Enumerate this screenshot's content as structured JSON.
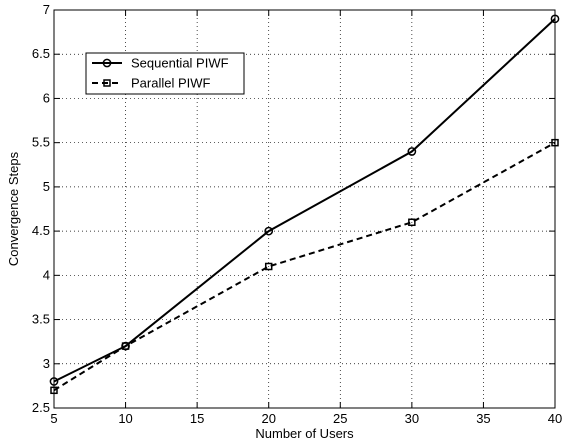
{
  "chart_data": {
    "type": "line",
    "x": [
      5,
      10,
      20,
      30,
      40
    ],
    "xlabel": "Number of Users",
    "ylabel": "Convergence Steps",
    "xlim": [
      5,
      40
    ],
    "ylim": [
      2.5,
      7
    ],
    "xticks": [
      5,
      10,
      15,
      20,
      25,
      30,
      35,
      40
    ],
    "yticks": [
      2.5,
      3,
      3.5,
      4,
      4.5,
      5,
      5.5,
      6,
      6.5,
      7
    ],
    "grid": true,
    "legend_position": "top-left",
    "series": [
      {
        "name": "Sequential PIWF",
        "values": [
          2.8,
          3.2,
          4.5,
          5.4,
          6.9
        ],
        "line": "solid",
        "marker": "circle",
        "color": "#000000"
      },
      {
        "name": "Parallel PIWF",
        "values": [
          2.7,
          3.2,
          4.1,
          4.6,
          5.5
        ],
        "line": "dashed",
        "marker": "square",
        "color": "#000000"
      }
    ]
  }
}
